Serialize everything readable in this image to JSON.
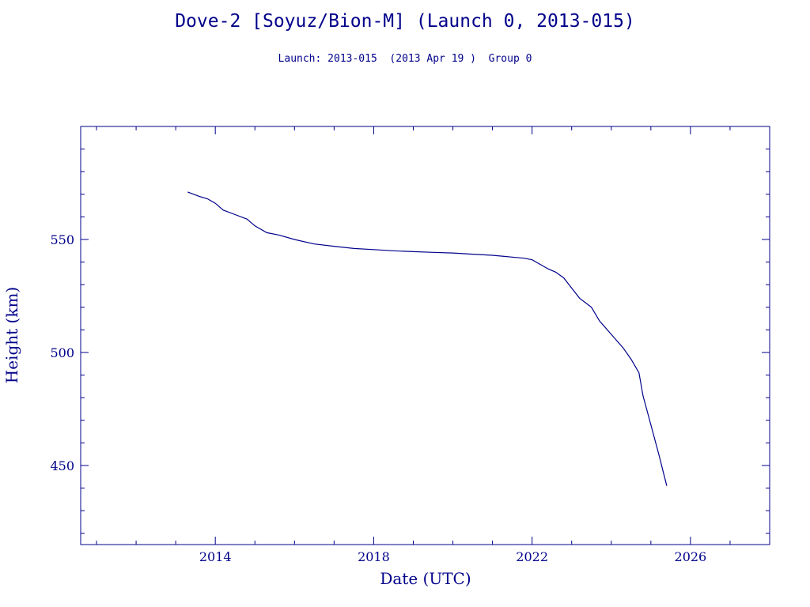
{
  "chart_data": {
    "type": "line",
    "title": "Dove-2 [Soyuz/Bion-M] (Launch 0, 2013-015)",
    "subtitle": "Launch: 2013-015  (2013 Apr 19 )  Group 0",
    "xlabel": "Date (UTC)",
    "ylabel": "Height (km)",
    "xlim": [
      2010.6,
      2028.0
    ],
    "ylim": [
      415,
      600
    ],
    "x_ticks": [
      2014,
      2018,
      2022,
      2026
    ],
    "y_ticks": [
      450,
      500,
      550
    ],
    "grid": false,
    "color": "#00008b",
    "series": [
      {
        "x": [
          2013.3,
          2013.6,
          2013.8,
          2014.0,
          2014.2,
          2014.5,
          2014.8,
          2015.0,
          2015.3,
          2015.6,
          2016.0,
          2016.5,
          2017.0,
          2017.5,
          2018.0,
          2018.5,
          2019.0,
          2019.5,
          2020.0,
          2020.5,
          2021.0,
          2021.5,
          2021.8,
          2022.0,
          2022.2,
          2022.4,
          2022.6,
          2022.8,
          2023.0,
          2023.2,
          2023.5,
          2023.7,
          2024.0,
          2024.3,
          2024.5,
          2024.7,
          2024.8,
          2025.0,
          2025.2,
          2025.4
        ],
        "y": [
          571,
          569,
          568,
          566,
          563,
          561,
          559,
          556,
          553,
          552,
          550,
          548,
          547,
          546,
          545.5,
          545,
          544.6,
          544.3,
          544,
          543.5,
          543,
          542.2,
          541.7,
          541,
          539,
          537,
          535.5,
          533,
          528.5,
          524,
          520,
          514,
          508,
          502,
          497,
          491,
          481,
          468,
          455,
          441
        ]
      }
    ]
  }
}
